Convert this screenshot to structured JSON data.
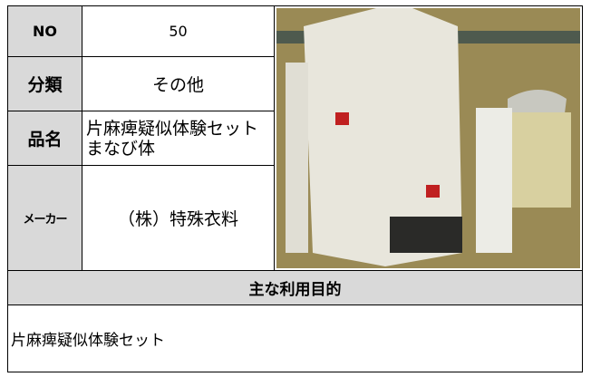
{
  "table": {
    "rows": [
      [
        "NO",
        "50"
      ],
      [
        "分類",
        "その他"
      ],
      [
        "品名",
        "片麻痺疑似体験セットまなび体"
      ],
      [
        "メーカー",
        "（株）特殊衣料"
      ]
    ]
  },
  "purpose": {
    "heading": "主な利用目的",
    "text": "片麻痺疑似体験セット"
  }
}
